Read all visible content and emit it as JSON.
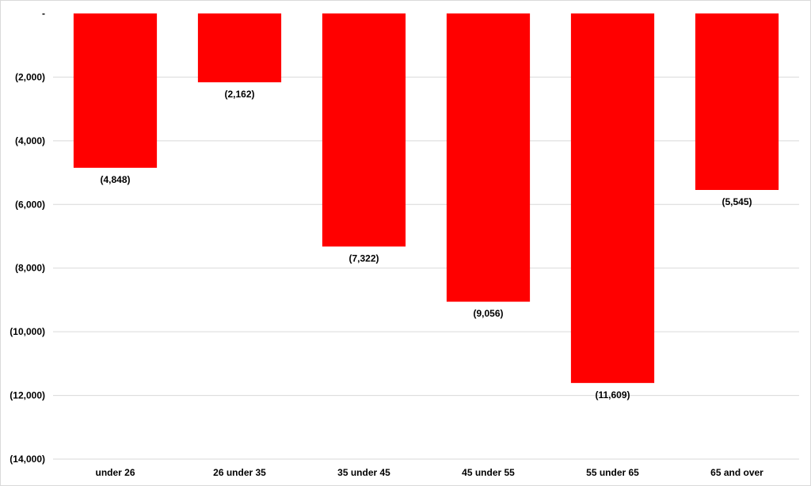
{
  "chart_data": {
    "type": "bar",
    "categories": [
      "under 26",
      "26 under 35",
      "35 under 45",
      "45 under 55",
      "55 under 65",
      "65 and over"
    ],
    "values": [
      -4848,
      -2162,
      -7322,
      -9056,
      -11609,
      -5545
    ],
    "data_labels": [
      "(4,848)",
      "(2,162)",
      "(7,322)",
      "(9,056)",
      "(11,609)",
      "(5,545)"
    ],
    "yticks": [
      0,
      -2000,
      -4000,
      -6000,
      -8000,
      -10000,
      -12000,
      -14000
    ],
    "ytick_labels": [
      "-",
      "(2,000)",
      "(4,000)",
      "(6,000)",
      "(8,000)",
      "(10,000)",
      "(12,000)",
      "(14,000)"
    ],
    "ylim": [
      -14000,
      0
    ],
    "title": "",
    "xlabel": "",
    "ylabel": "",
    "bar_color": "#ff0000",
    "grid": true,
    "legend": "none"
  }
}
